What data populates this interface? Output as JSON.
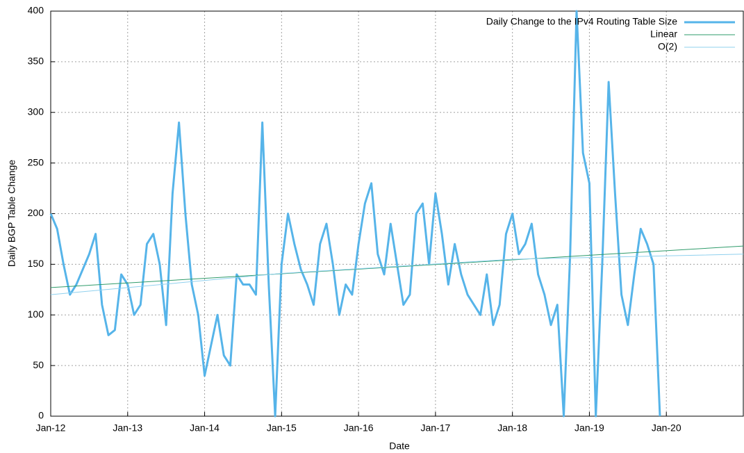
{
  "chart_data": {
    "type": "line",
    "xlabel": "Date",
    "ylabel": "Daily BGP Table Change",
    "legend": "top-right",
    "grid": true,
    "xlim": [
      "2012-01",
      "2021-01"
    ],
    "xticks": [
      {
        "value": "2012-01",
        "label": "Jan-12"
      },
      {
        "value": "2013-01",
        "label": "Jan-13"
      },
      {
        "value": "2014-01",
        "label": "Jan-14"
      },
      {
        "value": "2015-01",
        "label": "Jan-15"
      },
      {
        "value": "2016-01",
        "label": "Jan-16"
      },
      {
        "value": "2017-01",
        "label": "Jan-17"
      },
      {
        "value": "2018-01",
        "label": "Jan-18"
      },
      {
        "value": "2019-01",
        "label": "Jan-19"
      },
      {
        "value": "2020-01",
        "label": "Jan-20"
      }
    ],
    "ylim": [
      0,
      400
    ],
    "yticks": [
      0,
      50,
      100,
      150,
      200,
      250,
      300,
      350,
      400
    ],
    "series": [
      {
        "name": "Daily Change to the IPv4 Routing Table Size",
        "color": "#56b4e9",
        "width": 3,
        "x": [
          "2012-01",
          "2012-02",
          "2012-03",
          "2012-04",
          "2012-05",
          "2012-06",
          "2012-07",
          "2012-08",
          "2012-09",
          "2012-10",
          "2012-11",
          "2012-12",
          "2013-01",
          "2013-02",
          "2013-03",
          "2013-04",
          "2013-05",
          "2013-06",
          "2013-07",
          "2013-08",
          "2013-09",
          "2013-10",
          "2013-11",
          "2013-12",
          "2014-01",
          "2014-02",
          "2014-03",
          "2014-04",
          "2014-05",
          "2014-06",
          "2014-07",
          "2014-08",
          "2014-09",
          "2014-10",
          "2014-11",
          "2014-12",
          "2015-01",
          "2015-02",
          "2015-03",
          "2015-04",
          "2015-05",
          "2015-06",
          "2015-07",
          "2015-08",
          "2015-09",
          "2015-10",
          "2015-11",
          "2015-12",
          "2016-01",
          "2016-02",
          "2016-03",
          "2016-04",
          "2016-05",
          "2016-06",
          "2016-07",
          "2016-08",
          "2016-09",
          "2016-10",
          "2016-11",
          "2016-12",
          "2017-01",
          "2017-02",
          "2017-03",
          "2017-04",
          "2017-05",
          "2017-06",
          "2017-07",
          "2017-08",
          "2017-09",
          "2017-10",
          "2017-11",
          "2017-12",
          "2018-01",
          "2018-02",
          "2018-03",
          "2018-04",
          "2018-05",
          "2018-06",
          "2018-07",
          "2018-08",
          "2018-09",
          "2018-10",
          "2018-11",
          "2018-12",
          "2019-01",
          "2019-02",
          "2019-03",
          "2019-04",
          "2019-05",
          "2019-06",
          "2019-07",
          "2019-08",
          "2019-09",
          "2019-10",
          "2019-11",
          "2019-12"
        ],
        "values": [
          200,
          185,
          150,
          120,
          130,
          145,
          160,
          180,
          110,
          80,
          85,
          140,
          130,
          100,
          110,
          170,
          180,
          150,
          90,
          220,
          290,
          200,
          130,
          100,
          40,
          70,
          100,
          60,
          50,
          140,
          130,
          130,
          120,
          290,
          130,
          0,
          150,
          200,
          170,
          145,
          130,
          110,
          170,
          190,
          150,
          100,
          130,
          120,
          170,
          210,
          230,
          160,
          140,
          190,
          150,
          110,
          120,
          200,
          210,
          150,
          220,
          180,
          130,
          170,
          140,
          120,
          110,
          100,
          140,
          90,
          110,
          180,
          200,
          160,
          170,
          190,
          140,
          120,
          90,
          110,
          0,
          160,
          400,
          260,
          230,
          0,
          150,
          330,
          220,
          120,
          90,
          140,
          185,
          170,
          150,
          0
        ]
      },
      {
        "name": "Linear",
        "color": "#2e9b6a",
        "width": 1,
        "x": [
          "2012-01",
          "2021-01"
        ],
        "values": [
          127,
          168
        ]
      },
      {
        "name": "O(2)",
        "color": "#8fd0ee",
        "width": 1,
        "x": [
          "2012-01",
          "2015-01",
          "2018-01",
          "2021-01"
        ],
        "values": [
          120,
          141,
          155,
          160
        ]
      }
    ]
  }
}
